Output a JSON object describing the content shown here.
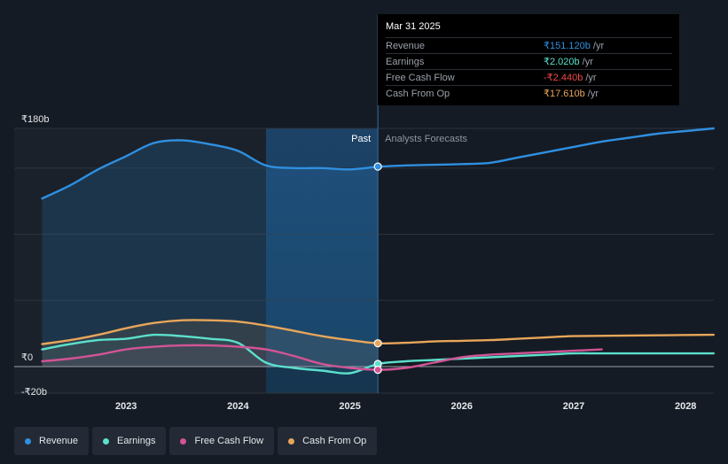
{
  "chart_data": {
    "type": "line",
    "y_axis": {
      "ticks": [
        {
          "label": "₹180b",
          "value": 180
        },
        {
          "label": "₹0",
          "value": 0
        },
        {
          "label": "-₹20b",
          "value": -20
        }
      ],
      "range": [
        -20,
        180
      ],
      "gridlines": [
        0,
        50,
        100,
        150,
        180
      ]
    },
    "x_axis": {
      "ticks": [
        "2023",
        "2024",
        "2025",
        "2026",
        "2027",
        "2028"
      ],
      "tick_years": [
        2023,
        2024,
        2025,
        2026,
        2027,
        2028
      ],
      "range": [
        2022.0,
        2028.25
      ]
    },
    "past_label": "Past",
    "forecast_label": "Analysts Forecasts",
    "divider_x": 2025.25,
    "highlight_range": [
      2024.25,
      2025.25
    ],
    "series": [
      {
        "name": "Revenue",
        "color": "#2f8fe0",
        "points": [
          [
            2022.25,
            127
          ],
          [
            2022.5,
            137
          ],
          [
            2022.75,
            149
          ],
          [
            2023.0,
            159
          ],
          [
            2023.25,
            169
          ],
          [
            2023.5,
            171
          ],
          [
            2023.75,
            168
          ],
          [
            2024.0,
            163
          ],
          [
            2024.25,
            152
          ],
          [
            2024.5,
            150
          ],
          [
            2024.75,
            150
          ],
          [
            2025.0,
            149
          ],
          [
            2025.25,
            151
          ],
          [
            2025.5,
            152
          ],
          [
            2025.75,
            152.5
          ],
          [
            2026.0,
            153
          ],
          [
            2026.25,
            154
          ],
          [
            2026.5,
            158
          ],
          [
            2026.75,
            162
          ],
          [
            2027.0,
            166
          ],
          [
            2027.25,
            170
          ],
          [
            2027.5,
            173
          ],
          [
            2027.75,
            176
          ],
          [
            2028.0,
            178
          ],
          [
            2028.25,
            180
          ]
        ],
        "forecast_start": 2025.25
      },
      {
        "name": "Earnings",
        "color": "#5ce0cc",
        "points": [
          [
            2022.25,
            13
          ],
          [
            2022.5,
            17
          ],
          [
            2022.75,
            20
          ],
          [
            2023.0,
            21
          ],
          [
            2023.25,
            24
          ],
          [
            2023.5,
            23
          ],
          [
            2023.75,
            21
          ],
          [
            2024.0,
            18
          ],
          [
            2024.25,
            3
          ],
          [
            2024.5,
            -1
          ],
          [
            2024.75,
            -3
          ],
          [
            2025.0,
            -5
          ],
          [
            2025.25,
            2
          ],
          [
            2025.5,
            4
          ],
          [
            2025.75,
            5
          ],
          [
            2026.0,
            6
          ],
          [
            2026.25,
            7
          ],
          [
            2026.5,
            8
          ],
          [
            2026.75,
            9
          ],
          [
            2027.0,
            10
          ],
          [
            2027.25,
            10
          ],
          [
            2027.75,
            10
          ],
          [
            2028.25,
            10
          ]
        ],
        "forecast_start": 2025.25
      },
      {
        "name": "Free Cash Flow",
        "color": "#d15495",
        "points": [
          [
            2022.25,
            4
          ],
          [
            2022.5,
            6
          ],
          [
            2022.75,
            9
          ],
          [
            2023.0,
            13
          ],
          [
            2023.25,
            15
          ],
          [
            2023.5,
            16
          ],
          [
            2023.75,
            16
          ],
          [
            2024.0,
            15
          ],
          [
            2024.25,
            13
          ],
          [
            2024.5,
            8
          ],
          [
            2024.75,
            2
          ],
          [
            2025.0,
            -1
          ],
          [
            2025.25,
            -2.44
          ],
          [
            2025.5,
            -1
          ],
          [
            2025.75,
            3
          ],
          [
            2026.0,
            7
          ],
          [
            2026.25,
            9
          ],
          [
            2026.5,
            10
          ],
          [
            2026.75,
            11
          ],
          [
            2027.0,
            12
          ],
          [
            2027.25,
            13
          ]
        ],
        "forecast_start": 2025.25
      },
      {
        "name": "Cash From Op",
        "color": "#e8a65a",
        "points": [
          [
            2022.25,
            17
          ],
          [
            2022.5,
            20
          ],
          [
            2022.75,
            24
          ],
          [
            2023.0,
            29
          ],
          [
            2023.25,
            33
          ],
          [
            2023.5,
            35
          ],
          [
            2023.75,
            35
          ],
          [
            2024.0,
            34
          ],
          [
            2024.25,
            31
          ],
          [
            2024.5,
            27
          ],
          [
            2024.75,
            23
          ],
          [
            2025.0,
            20
          ],
          [
            2025.25,
            17.61
          ],
          [
            2025.5,
            18
          ],
          [
            2025.75,
            19
          ],
          [
            2026.0,
            19.5
          ],
          [
            2026.25,
            20
          ],
          [
            2026.5,
            21
          ],
          [
            2026.75,
            22
          ],
          [
            2027.0,
            23
          ],
          [
            2027.5,
            23.5
          ],
          [
            2028.25,
            24
          ]
        ],
        "forecast_start": 2025.25
      }
    ],
    "markers": [
      {
        "series": "Revenue",
        "x": 2025.25,
        "y": 151.12
      },
      {
        "series": "Cash From Op",
        "x": 2025.25,
        "y": 17.61
      },
      {
        "series": "Earnings",
        "x": 2025.25,
        "y": 2.02
      },
      {
        "series": "Free Cash Flow",
        "x": 2025.25,
        "y": -2.44
      }
    ]
  },
  "tooltip": {
    "date": "Mar 31 2025",
    "rows": [
      {
        "label": "Revenue",
        "value": "₹151.120b",
        "unit": "/yr",
        "color": "#2f8fe0"
      },
      {
        "label": "Earnings",
        "value": "₹2.020b",
        "unit": "/yr",
        "color": "#5ce0cc"
      },
      {
        "label": "Free Cash Flow",
        "value": "-₹2.440b",
        "unit": "/yr",
        "color": "#f04848"
      },
      {
        "label": "Cash From Op",
        "value": "₹17.610b",
        "unit": "/yr",
        "color": "#e8a65a"
      }
    ]
  },
  "legend": [
    {
      "label": "Revenue",
      "color": "#2f8fe0"
    },
    {
      "label": "Earnings",
      "color": "#5ce0cc"
    },
    {
      "label": "Free Cash Flow",
      "color": "#d15495"
    },
    {
      "label": "Cash From Op",
      "color": "#e8a65a"
    }
  ]
}
